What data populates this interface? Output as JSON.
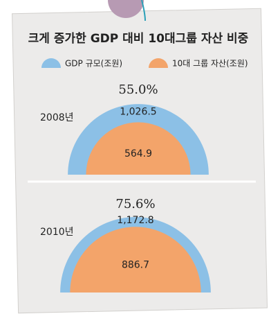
{
  "chart_data": {
    "type": "nested-semicircle",
    "title": "크게 증가한 GDP 대비 10대그룹 자산 비중",
    "categories": [
      "2008년",
      "2010년"
    ],
    "annotations": [
      "55.0%",
      "75.6%"
    ],
    "series": [
      {
        "name": "GDP 규모(조원)",
        "color": "#8cc0e6",
        "values": [
          1026.5,
          1172.8
        ],
        "value_labels": [
          "1,026.5",
          "1,172.8"
        ]
      },
      {
        "name": "10대 그룹 자산(조원)",
        "color": "#f3a46a",
        "values": [
          564.9,
          886.7
        ]
      }
    ]
  }
}
